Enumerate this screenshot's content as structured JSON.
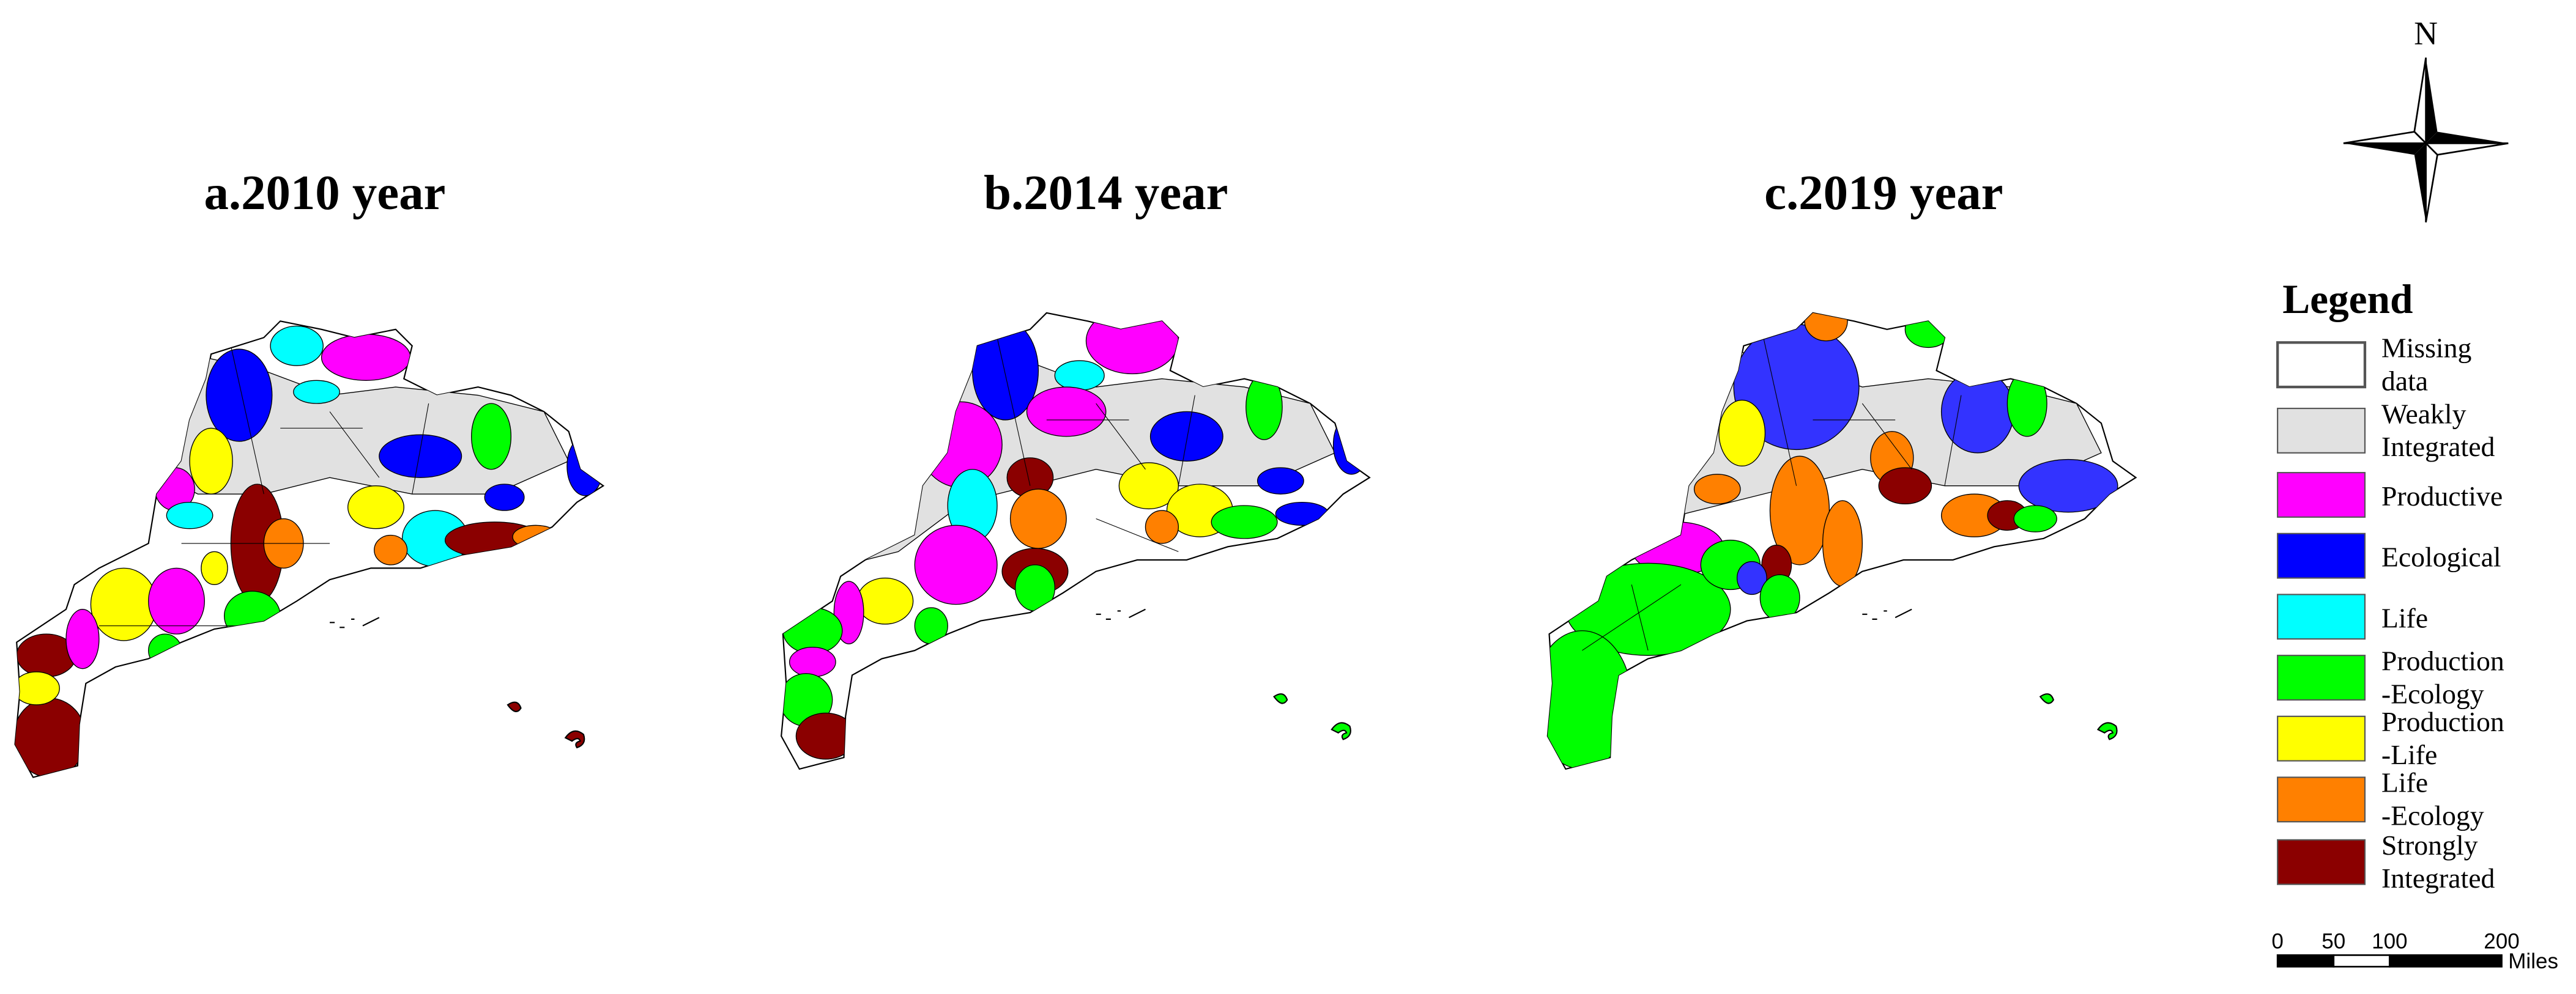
{
  "panels": [
    {
      "title": "a.2010 year"
    },
    {
      "title": "b.2014 year"
    },
    {
      "title": "c.2019 year"
    }
  ],
  "north_arrow": {
    "label": "N"
  },
  "legend": {
    "title": "Legend",
    "items": [
      {
        "lines": [
          "Missing",
          "data"
        ],
        "color": "#ffffff"
      },
      {
        "lines": [
          "Weakly",
          "Integrated"
        ],
        "color": "#e1e1e1"
      },
      {
        "lines": [
          "Productive"
        ],
        "color": "#ff00ff"
      },
      {
        "lines": [
          "Ecological"
        ],
        "color": "#0000ff"
      },
      {
        "lines": [
          " Life"
        ],
        "color": "#00ffff"
      },
      {
        "lines": [
          "Production",
          "-Ecology"
        ],
        "color": "#00ff00"
      },
      {
        "lines": [
          "Production",
          " -Life"
        ],
        "color": "#ffff00"
      },
      {
        "lines": [
          "Life",
          "-Ecology"
        ],
        "color": "#ff8000"
      },
      {
        "lines": [
          "Strongly",
          "Integrated"
        ],
        "color": "#8b0000"
      }
    ]
  },
  "scale_bar": {
    "ticks": [
      0,
      50,
      100,
      200
    ],
    "unit": "Miles"
  }
}
